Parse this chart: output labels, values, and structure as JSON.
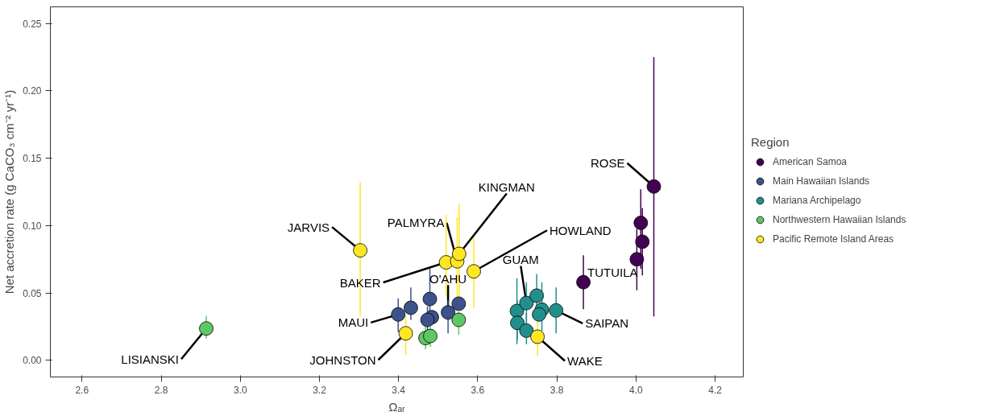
{
  "chart_data": {
    "type": "scatter",
    "xlabel": "Ωₐᵣ",
    "ylabel": "Net accretion rate (g CaCO₃ cm⁻² yr⁻¹)",
    "legend_title": "Region",
    "legend": "right",
    "grid": false,
    "marker": "circle",
    "xlim": [
      2.52,
      4.271
    ],
    "ylim": [
      -0.0124,
      0.2624
    ],
    "xticks": [
      2.6,
      2.8,
      {
        "value": 3.0,
        "label": "3.0"
      },
      3.2,
      3.4,
      3.6,
      3.8,
      {
        "value": 4.0,
        "label": "4.0"
      },
      4.2
    ],
    "yticks": [
      {
        "value": 0,
        "label": "0.00"
      },
      {
        "value": 0.05,
        "label": "0.05"
      },
      {
        "value": 0.1,
        "label": "0.10"
      },
      {
        "value": 0.15,
        "label": "0.15"
      },
      {
        "value": 0.2,
        "label": "0.20"
      },
      {
        "value": 0.25,
        "label": "0.25"
      }
    ],
    "series": [
      {
        "name": "American Samoa",
        "color": "#440154",
        "x": [
          4.045,
          4.012,
          4.016,
          4.002,
          3.867
        ],
        "values": [
          0.129,
          0.102,
          0.088,
          0.075,
          0.058
        ],
        "errors": [
          [
            0.0325,
            0.225
          ],
          [
            0.068,
            0.127
          ],
          [
            0.063,
            0.113
          ],
          [
            0.052,
            0.0975
          ],
          [
            0.038,
            0.078
          ]
        ]
      },
      {
        "name": "Main Hawaiian Islands",
        "color": "#3b528b",
        "x": [
          3.399,
          3.431,
          3.479,
          3.484,
          3.473,
          3.525,
          3.552
        ],
        "values": [
          0.034,
          0.039,
          0.0455,
          0.032,
          0.03,
          0.0355,
          0.042
        ],
        "errors": [
          [
            0.021,
            0.046
          ],
          [
            0.03,
            0.054
          ],
          [
            0.028,
            0.068
          ],
          null,
          [
            0.02,
            0.04
          ],
          [
            0.02,
            0.0445
          ],
          null
        ]
      },
      {
        "name": "Mariana Archipelago",
        "color": "#21908c",
        "x": [
          3.699,
          3.7,
          3.723,
          3.749,
          3.723,
          3.762,
          3.755,
          3.798
        ],
        "values": [
          0.0366,
          0.0278,
          0.0425,
          0.048,
          0.022,
          0.0376,
          0.034,
          0.037
        ],
        "errors": [
          [
            0.012,
            0.061
          ],
          [
            0.015,
            0.045
          ],
          [
            0.018,
            0.058
          ],
          [
            0.03,
            0.064
          ],
          [
            0.012,
            0.035
          ],
          [
            0.022,
            0.058
          ],
          null,
          [
            0.02,
            0.054
          ]
        ]
      },
      {
        "name": "Northwestern Hawaiian Islands",
        "color": "#5dc863",
        "x": [
          2.914,
          3.552,
          3.468,
          3.48
        ],
        "values": [
          0.0236,
          0.03,
          0.0165,
          0.018
        ],
        "errors": [
          [
            0.016,
            0.033
          ],
          [
            0.019,
            0.036
          ],
          [
            0.008,
            0.027
          ],
          [
            0.01,
            0.025
          ]
        ]
      },
      {
        "name": "Pacific Remote Island Areas",
        "color": "#fde725",
        "x": [
          3.303,
          3.52,
          3.548,
          3.553,
          3.59,
          3.418,
          3.751
        ],
        "values": [
          0.0816,
          0.0727,
          0.0735,
          0.079,
          0.066,
          0.02,
          0.0175
        ],
        "errors": [
          [
            0.033,
            0.132
          ],
          [
            0.048,
            0.108
          ],
          [
            0.047,
            0.106
          ],
          [
            0.045,
            0.116
          ],
          [
            0.0386,
            0.091
          ],
          [
            0.004,
            0.033
          ],
          [
            0.003,
            0.031
          ]
        ]
      }
    ],
    "annotations": [
      {
        "text": "ROSE",
        "x": 4.045,
        "y": 0.129
      },
      {
        "text": "TUTUILA",
        "x": 3.867,
        "y": 0.058
      },
      {
        "text": "JARVIS",
        "x": 3.303,
        "y": 0.0816
      },
      {
        "text": "PALMYRA",
        "x": 3.548,
        "y": 0.0735
      },
      {
        "text": "KINGMAN",
        "x": 3.553,
        "y": 0.079
      },
      {
        "text": "HOWLAND",
        "x": 3.59,
        "y": 0.066
      },
      {
        "text": "BAKER",
        "x": 3.52,
        "y": 0.0727
      },
      {
        "text": "O'AHU",
        "x": 3.525,
        "y": 0.0355
      },
      {
        "text": "MAUI",
        "x": 3.399,
        "y": 0.034
      },
      {
        "text": "JOHNSTON",
        "x": 3.418,
        "y": 0.02
      },
      {
        "text": "LISIANSKI",
        "x": 2.914,
        "y": 0.0236
      },
      {
        "text": "GUAM",
        "x": 3.723,
        "y": 0.0425
      },
      {
        "text": "SAIPAN",
        "x": 3.798,
        "y": 0.037
      },
      {
        "text": "WAKE",
        "x": 3.751,
        "y": 0.0175
      }
    ]
  }
}
